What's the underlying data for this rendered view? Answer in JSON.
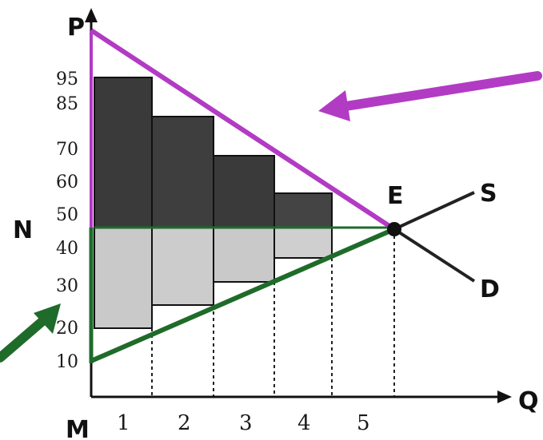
{
  "labels": {
    "price_axis": "P",
    "quantity_axis": "Q",
    "origin": "M",
    "intercept": "N",
    "equilibrium": "E",
    "supply": "S",
    "demand": "D"
  },
  "y_ticks": [
    "95",
    "85",
    "70",
    "60",
    "50",
    "40",
    "30",
    "20",
    "10"
  ],
  "x_ticks": [
    "1",
    "2",
    "3",
    "4",
    "5"
  ],
  "colors": {
    "demand_highlight": "#b23bc4",
    "supply_highlight": "#1f6b2a",
    "consumer_surplus_fill": "#3a3a3a",
    "producer_surplus_fill": "#c9c9c9",
    "axis": "#111111"
  },
  "chart_data": {
    "type": "diagram",
    "x_axis": "Q",
    "y_axis": "P",
    "equilibrium": {
      "x": 5.5,
      "y": 45
    },
    "demand_line": [
      {
        "x": 0,
        "y": 105
      },
      {
        "x": 5.5,
        "y": 45
      },
      {
        "x": 6.5,
        "y": 33
      }
    ],
    "supply_line": [
      {
        "x": 0,
        "y": 10
      },
      {
        "x": 5.5,
        "y": 45
      },
      {
        "x": 6.5,
        "y": 53
      }
    ],
    "buyer_values": [
      95,
      85,
      70,
      60
    ],
    "seller_costs": [
      20,
      25,
      30,
      35
    ],
    "market_price": 45
  }
}
